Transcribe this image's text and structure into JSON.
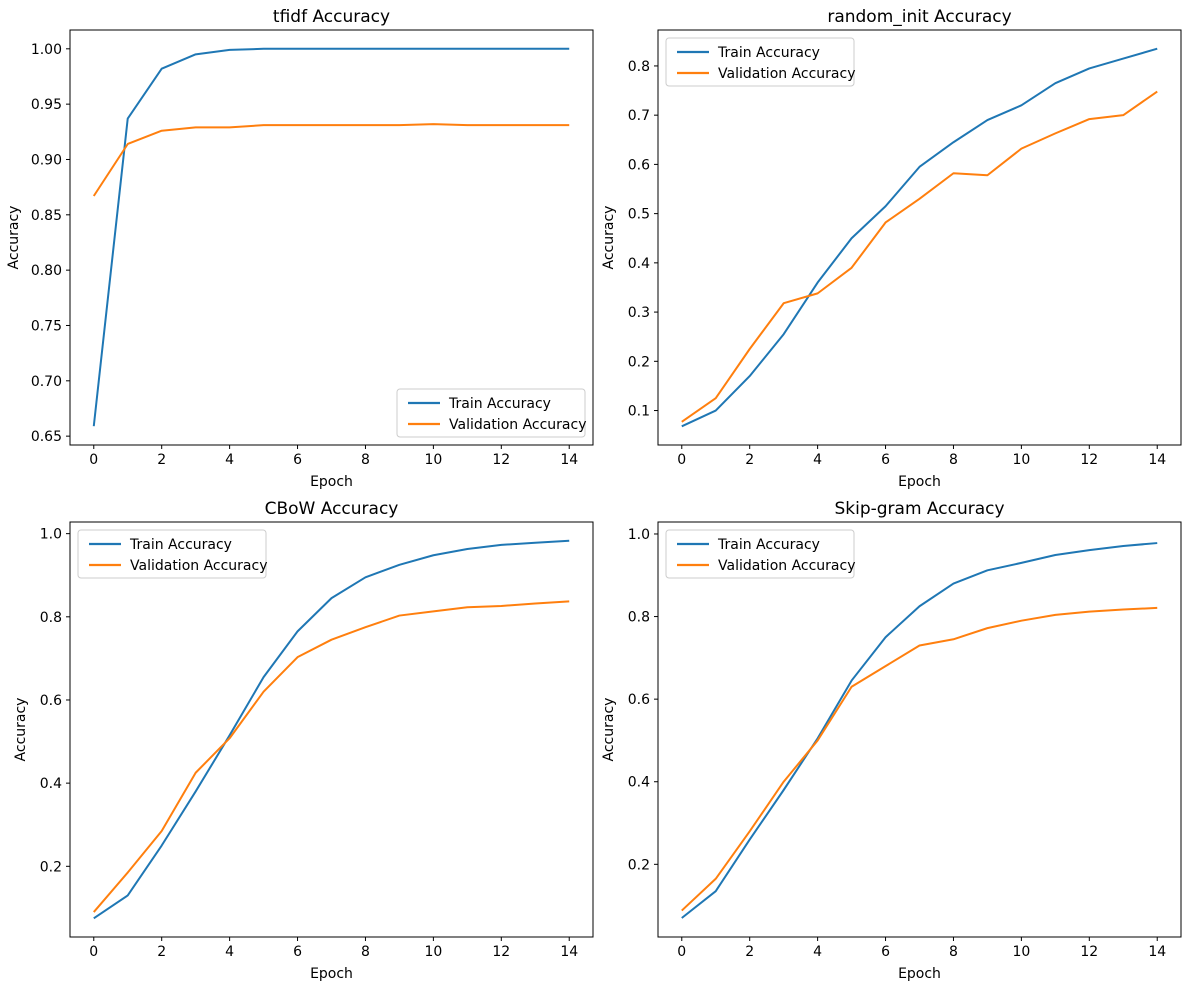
{
  "figure": {
    "background": "#ffffff",
    "frame_color": "#000000",
    "tick_color": "#000000",
    "legend_border_color": "#cccccc",
    "legend_background": "#ffffff"
  },
  "chart_data": [
    {
      "id": "tfidf",
      "type": "line",
      "title": "tfidf Accuracy",
      "xlabel": "Epoch",
      "ylabel": "Accuracy",
      "x": [
        0,
        1,
        2,
        3,
        4,
        5,
        6,
        7,
        8,
        9,
        10,
        11,
        12,
        13,
        14
      ],
      "series": [
        {
          "name": "Train Accuracy",
          "color": "#1f77b4",
          "values": [
            0.659,
            0.937,
            0.982,
            0.995,
            0.999,
            1.0,
            1.0,
            1.0,
            1.0,
            1.0,
            1.0,
            1.0,
            1.0,
            1.0,
            1.0
          ]
        },
        {
          "name": "Validation Accuracy",
          "color": "#ff7f0e",
          "values": [
            0.867,
            0.914,
            0.926,
            0.929,
            0.929,
            0.931,
            0.931,
            0.931,
            0.931,
            0.931,
            0.932,
            0.931,
            0.931,
            0.931,
            0.931
          ]
        }
      ],
      "xlim": [
        -0.7,
        14.7
      ],
      "ylim": [
        0.642,
        1.017
      ],
      "xticks": [
        0,
        2,
        4,
        6,
        8,
        10,
        12,
        14
      ],
      "xtick_labels": [
        "0",
        "2",
        "4",
        "6",
        "8",
        "10",
        "12",
        "14"
      ],
      "yticks": [
        0.65,
        0.7,
        0.75,
        0.8,
        0.85,
        0.9,
        0.95,
        1.0
      ],
      "ytick_labels": [
        "0.65",
        "0.70",
        "0.75",
        "0.80",
        "0.85",
        "0.90",
        "0.95",
        "1.00"
      ],
      "legend_position": "lower right",
      "grid": false
    },
    {
      "id": "random_init",
      "type": "line",
      "title": "random_init Accuracy",
      "xlabel": "Epoch",
      "ylabel": "Accuracy",
      "x": [
        0,
        1,
        2,
        3,
        4,
        5,
        6,
        7,
        8,
        9,
        10,
        11,
        12,
        13,
        14
      ],
      "series": [
        {
          "name": "Train Accuracy",
          "color": "#1f77b4",
          "values": [
            0.068,
            0.1,
            0.17,
            0.255,
            0.36,
            0.45,
            0.515,
            0.595,
            0.645,
            0.69,
            0.72,
            0.765,
            0.795,
            0.815,
            0.835
          ]
        },
        {
          "name": "Validation Accuracy",
          "color": "#ff7f0e",
          "values": [
            0.077,
            0.125,
            0.225,
            0.318,
            0.338,
            0.39,
            0.482,
            0.53,
            0.582,
            0.578,
            0.632,
            0.663,
            0.692,
            0.7,
            0.748
          ]
        }
      ],
      "xlim": [
        -0.7,
        14.7
      ],
      "ylim": [
        0.03,
        0.873
      ],
      "xticks": [
        0,
        2,
        4,
        6,
        8,
        10,
        12,
        14
      ],
      "xtick_labels": [
        "0",
        "2",
        "4",
        "6",
        "8",
        "10",
        "12",
        "14"
      ],
      "yticks": [
        0.1,
        0.2,
        0.3,
        0.4,
        0.5,
        0.6,
        0.7,
        0.8
      ],
      "ytick_labels": [
        "0.1",
        "0.2",
        "0.3",
        "0.4",
        "0.5",
        "0.6",
        "0.7",
        "0.8"
      ],
      "legend_position": "upper left",
      "grid": false
    },
    {
      "id": "CBoW",
      "type": "line",
      "title": "CBoW Accuracy",
      "xlabel": "Epoch",
      "ylabel": "Accuracy",
      "x": [
        0,
        1,
        2,
        3,
        4,
        5,
        6,
        7,
        8,
        9,
        10,
        11,
        12,
        13,
        14
      ],
      "series": [
        {
          "name": "Train Accuracy",
          "color": "#1f77b4",
          "values": [
            0.075,
            0.13,
            0.25,
            0.38,
            0.515,
            0.655,
            0.765,
            0.845,
            0.895,
            0.925,
            0.948,
            0.963,
            0.973,
            0.978,
            0.983
          ]
        },
        {
          "name": "Validation Accuracy",
          "color": "#ff7f0e",
          "values": [
            0.09,
            0.185,
            0.285,
            0.425,
            0.508,
            0.62,
            0.703,
            0.745,
            0.775,
            0.803,
            0.813,
            0.823,
            0.826,
            0.832,
            0.837
          ]
        }
      ],
      "xlim": [
        -0.7,
        14.7
      ],
      "ylim": [
        0.03,
        1.028
      ],
      "xticks": [
        0,
        2,
        4,
        6,
        8,
        10,
        12,
        14
      ],
      "xtick_labels": [
        "0",
        "2",
        "4",
        "6",
        "8",
        "10",
        "12",
        "14"
      ],
      "yticks": [
        0.2,
        0.4,
        0.6,
        0.8,
        1.0
      ],
      "ytick_labels": [
        "0.2",
        "0.4",
        "0.6",
        "0.8",
        "1.0"
      ],
      "legend_position": "upper left",
      "grid": false
    },
    {
      "id": "Skip-gram",
      "type": "line",
      "title": "Skip-gram Accuracy",
      "xlabel": "Epoch",
      "ylabel": "Accuracy",
      "x": [
        0,
        1,
        2,
        3,
        4,
        5,
        6,
        7,
        8,
        9,
        10,
        11,
        12,
        13,
        14
      ],
      "series": [
        {
          "name": "Train Accuracy",
          "color": "#1f77b4",
          "values": [
            0.07,
            0.135,
            0.26,
            0.38,
            0.505,
            0.645,
            0.75,
            0.825,
            0.88,
            0.912,
            0.93,
            0.949,
            0.961,
            0.971,
            0.978
          ]
        },
        {
          "name": "Validation Accuracy",
          "color": "#ff7f0e",
          "values": [
            0.088,
            0.165,
            0.28,
            0.4,
            0.5,
            0.63,
            0.68,
            0.73,
            0.745,
            0.772,
            0.79,
            0.804,
            0.812,
            0.817,
            0.821
          ]
        }
      ],
      "xlim": [
        -0.7,
        14.7
      ],
      "ylim": [
        0.024,
        1.029
      ],
      "xticks": [
        0,
        2,
        4,
        6,
        8,
        10,
        12,
        14
      ],
      "xtick_labels": [
        "0",
        "2",
        "4",
        "6",
        "8",
        "10",
        "12",
        "14"
      ],
      "yticks": [
        0.2,
        0.4,
        0.6,
        0.8,
        1.0
      ],
      "ytick_labels": [
        "0.2",
        "0.4",
        "0.6",
        "0.8",
        "1.0"
      ],
      "legend_position": "upper left",
      "grid": false
    }
  ]
}
